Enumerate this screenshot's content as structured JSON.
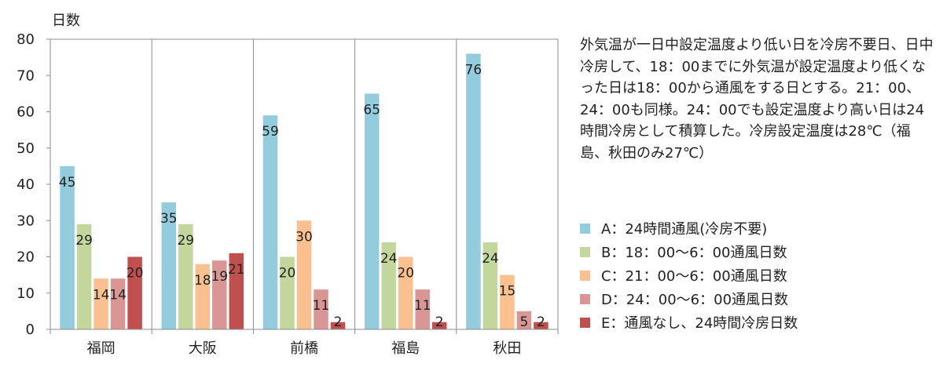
{
  "chart_data": {
    "type": "bar",
    "ylabel": "日数",
    "ylim": [
      0,
      80
    ],
    "yticks": [
      0,
      10,
      20,
      30,
      40,
      50,
      60,
      70,
      80
    ],
    "grid": "vertical separators between categories",
    "categories": [
      "福岡",
      "大阪",
      "前橋",
      "福島",
      "秋田"
    ],
    "series": [
      {
        "name": "A：24時間通風(冷房不要)",
        "color": "#93CDDD",
        "values": [
          45,
          35,
          59,
          65,
          76
        ]
      },
      {
        "name": "B：18：00〜6：00通風日数",
        "color": "#C3D69B",
        "values": [
          29,
          29,
          20,
          24,
          24
        ]
      },
      {
        "name": "C：21：00〜6：00通風日数",
        "color": "#FAC090",
        "values": [
          14,
          18,
          30,
          20,
          15
        ]
      },
      {
        "name": "D：24：00〜6：00通風日数",
        "color": "#D99694",
        "values": [
          14,
          19,
          11,
          11,
          5
        ]
      },
      {
        "name": "E：通風なし、24時間冷房日数",
        "color": "#C0504D",
        "values": [
          20,
          21,
          2,
          2,
          2
        ]
      }
    ],
    "legend_position": "right"
  },
  "note": "外気温が一日中設定温度より低い日を冷房不要日、日中冷房して、18：00までに外気温が設定温度より低くなった日は18：00から通風をする日とする。21：00、24：00も同様。24：00でも設定温度より高い日は24時間冷房として積算した。冷房設定温度は28℃（福島、秋田のみ27℃）"
}
